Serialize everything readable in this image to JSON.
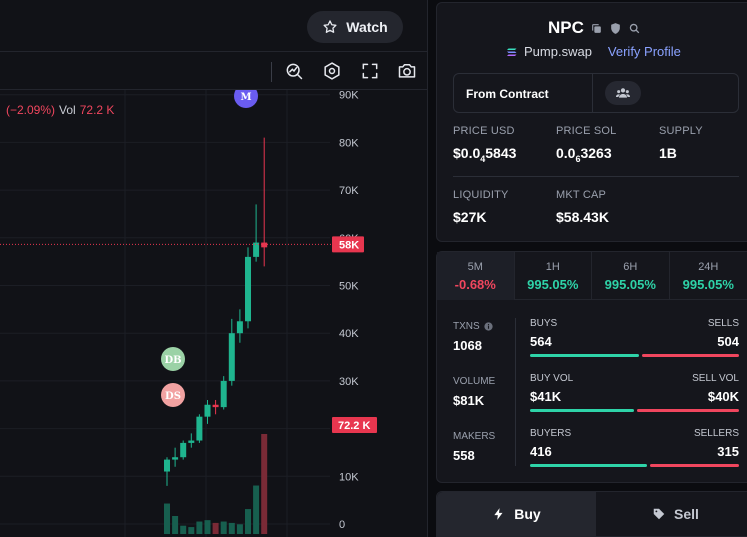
{
  "header": {
    "watch_label": "Watch"
  },
  "toolbar": {
    "icons": [
      "indicator-icon",
      "settings-hex-icon",
      "fullscreen-icon",
      "camera-icon"
    ]
  },
  "chart_legend": {
    "change": "(−2.09%)",
    "vol_label": "Vol",
    "vol_value": "72.2 K"
  },
  "chart_data": {
    "type": "candlestick",
    "y_axis_ticks": [
      "90K",
      "80K",
      "70K",
      "60K",
      "50K",
      "40K",
      "30K",
      "20K",
      "10K",
      "0"
    ],
    "price_marker": "58K",
    "volume_marker": "72.2 K",
    "markers": [
      {
        "label": "M",
        "color": "#6a5cf0"
      },
      {
        "label": "DB",
        "color": "#9bd2a6"
      },
      {
        "label": "DS",
        "color": "#f2a2a2"
      }
    ],
    "candles": [
      {
        "o": 11,
        "h": 14,
        "l": 8,
        "c": 13.5,
        "up": true
      },
      {
        "o": 13.5,
        "h": 16,
        "l": 12,
        "c": 14,
        "up": true
      },
      {
        "o": 14,
        "h": 17.5,
        "l": 13.5,
        "c": 17,
        "up": true
      },
      {
        "o": 17,
        "h": 19,
        "l": 16,
        "c": 17.5,
        "up": true
      },
      {
        "o": 17.5,
        "h": 23,
        "l": 17,
        "c": 22.5,
        "up": true
      },
      {
        "o": 22.5,
        "h": 26,
        "l": 21,
        "c": 25,
        "up": true
      },
      {
        "o": 25,
        "h": 26,
        "l": 23,
        "c": 24.5,
        "up": false
      },
      {
        "o": 24.5,
        "h": 31,
        "l": 24,
        "c": 30,
        "up": true
      },
      {
        "o": 30,
        "h": 43,
        "l": 29,
        "c": 40,
        "up": true
      },
      {
        "o": 40,
        "h": 45,
        "l": 38,
        "c": 42.5,
        "up": true
      },
      {
        "o": 42.5,
        "h": 58,
        "l": 41,
        "c": 56,
        "up": true
      },
      {
        "o": 56,
        "h": 67,
        "l": 55,
        "c": 59,
        "up": true
      },
      {
        "o": 59,
        "h": 81,
        "l": 54,
        "c": 58,
        "up": false
      }
    ],
    "volumes": [
      {
        "v": 22,
        "up": true
      },
      {
        "v": 13,
        "up": true
      },
      {
        "v": 6,
        "up": true
      },
      {
        "v": 5,
        "up": true
      },
      {
        "v": 9,
        "up": true
      },
      {
        "v": 10,
        "up": true
      },
      {
        "v": 8,
        "up": false
      },
      {
        "v": 9,
        "up": true
      },
      {
        "v": 8,
        "up": true
      },
      {
        "v": 7,
        "up": true
      },
      {
        "v": 18,
        "up": true
      },
      {
        "v": 35,
        "up": true
      },
      {
        "v": 72.2,
        "up": false
      }
    ]
  },
  "token": {
    "name": "NPC",
    "dex": "Pump.swap",
    "verify_label": "Verify Profile",
    "contract_label": "From Contract"
  },
  "metrics": {
    "price_usd_label": "PRICE USD",
    "price_usd_prefix": "$0.0",
    "price_usd_sub": "4",
    "price_usd_suffix": "5843",
    "price_sol_label": "PRICE SOL",
    "price_sol_prefix": "0.0",
    "price_sol_sub": "6",
    "price_sol_suffix": "3263",
    "supply_label": "SUPPLY",
    "supply_value": "1B",
    "liquidity_label": "LIQUIDITY",
    "liquidity_value": "$27K",
    "mktcap_label": "MKT CAP",
    "mktcap_value": "$58.43K"
  },
  "timeframes": [
    {
      "label": "5M",
      "value": "-0.68%",
      "trend": "neg"
    },
    {
      "label": "1H",
      "value": "995.05%",
      "trend": "pos"
    },
    {
      "label": "6H",
      "value": "995.05%",
      "trend": "pos"
    },
    {
      "label": "24H",
      "value": "995.05%",
      "trend": "pos"
    }
  ],
  "stats": {
    "txns_label": "TXNS",
    "txns_value": "1068",
    "volume_label": "VOLUME",
    "volume_value": "$81K",
    "makers_label": "MAKERS",
    "makers_value": "558",
    "buys_label": "BUYS",
    "buys_value": "564",
    "sells_label": "SELLS",
    "sells_value": "504",
    "buy_share": 0.528,
    "buyvol_label": "BUY VOL",
    "buyvol_value": "$41K",
    "sellvol_label": "SELL VOL",
    "sellvol_value": "$40K",
    "buyvol_share": 0.506,
    "buyers_label": "BUYERS",
    "buyers_value": "416",
    "sellers_label": "SELLERS",
    "sellers_value": "315",
    "buyers_share": 0.569
  },
  "trade": {
    "buy_label": "Buy",
    "sell_label": "Sell"
  }
}
